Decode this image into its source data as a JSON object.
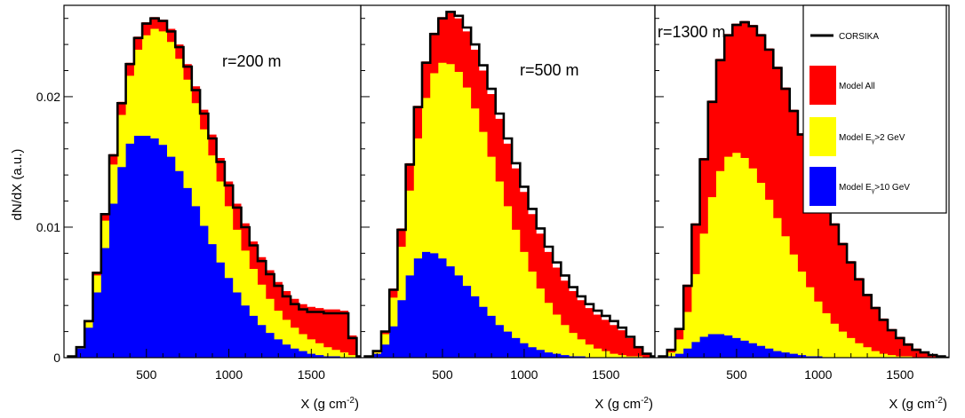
{
  "chart_data": [
    {
      "type": "area",
      "annotation": "r=200 m",
      "xlabel": "X (g cm",
      "xlabel_sup": "-2",
      "xlabel_tail": ")",
      "ylabel": "dN/dX (a.u.)",
      "xlim": [
        0,
        1800
      ],
      "ylim": [
        0,
        0.027
      ],
      "x_ticks": [
        "500",
        "1000",
        "1500"
      ],
      "y_ticks": [
        "0",
        "0.01",
        "0.02"
      ],
      "x": [
        50,
        100,
        150,
        200,
        250,
        300,
        350,
        400,
        450,
        500,
        550,
        600,
        650,
        700,
        750,
        800,
        850,
        900,
        950,
        1000,
        1050,
        1100,
        1150,
        1200,
        1250,
        1300,
        1350,
        1400,
        1450,
        1500,
        1550,
        1600,
        1650,
        1700,
        1750,
        1800
      ],
      "series": [
        {
          "name": "CORSIKA",
          "values": [
            0.0001,
            0.0008,
            0.0028,
            0.0065,
            0.011,
            0.0155,
            0.0195,
            0.0225,
            0.0245,
            0.0256,
            0.026,
            0.0258,
            0.025,
            0.0238,
            0.0223,
            0.0205,
            0.0187,
            0.0168,
            0.015,
            0.0132,
            0.0115,
            0.01,
            0.0086,
            0.0074,
            0.0064,
            0.0055,
            0.0047,
            0.0041,
            0.0037,
            0.0035,
            0.0035,
            0.0034,
            0.0034,
            0.0034,
            0.0015,
            0.0001
          ]
        },
        {
          "name": "Model All",
          "values": [
            0.0001,
            0.0008,
            0.0028,
            0.0066,
            0.011,
            0.0156,
            0.0196,
            0.0226,
            0.0246,
            0.0257,
            0.0261,
            0.0259,
            0.0252,
            0.024,
            0.0225,
            0.0208,
            0.019,
            0.0171,
            0.0153,
            0.0135,
            0.0118,
            0.0103,
            0.0089,
            0.0077,
            0.0067,
            0.0058,
            0.0051,
            0.0045,
            0.0041,
            0.0039,
            0.0038,
            0.0037,
            0.0037,
            0.0036,
            0.0017,
            0.0001
          ]
        },
        {
          "name": "Model Eγ>2 GeV",
          "values": [
            0.0001,
            0.0008,
            0.0027,
            0.0063,
            0.0105,
            0.0148,
            0.0186,
            0.0216,
            0.0236,
            0.0247,
            0.0252,
            0.025,
            0.0242,
            0.0229,
            0.0213,
            0.0195,
            0.0175,
            0.0155,
            0.0135,
            0.0116,
            0.0098,
            0.0082,
            0.0068,
            0.0056,
            0.0045,
            0.0036,
            0.0029,
            0.0023,
            0.0018,
            0.0014,
            0.0011,
            0.0008,
            0.0006,
            0.0004,
            0.0002,
            0.0001
          ]
        },
        {
          "name": "Model Eγ>10 GeV",
          "values": [
            0.0001,
            0.0007,
            0.0023,
            0.005,
            0.0084,
            0.0118,
            0.0146,
            0.0164,
            0.017,
            0.017,
            0.0168,
            0.0163,
            0.0154,
            0.0143,
            0.013,
            0.0116,
            0.0101,
            0.0087,
            0.0073,
            0.0061,
            0.005,
            0.004,
            0.0032,
            0.0025,
            0.0019,
            0.0014,
            0.001,
            0.0007,
            0.0005,
            0.0003,
            0.0002,
            0.0001,
            0.0001,
            0,
            0,
            0
          ]
        }
      ]
    },
    {
      "type": "area",
      "annotation": "r=500 m",
      "xlabel": "X (g cm",
      "xlabel_sup": "-2",
      "xlabel_tail": ")",
      "xlim": [
        0,
        1800
      ],
      "ylim": [
        0,
        0.027
      ],
      "x_ticks": [
        "500",
        "1000",
        "1500"
      ],
      "x": [
        50,
        100,
        150,
        200,
        250,
        300,
        350,
        400,
        450,
        500,
        550,
        600,
        650,
        700,
        750,
        800,
        850,
        900,
        950,
        1000,
        1050,
        1100,
        1150,
        1200,
        1250,
        1300,
        1350,
        1400,
        1450,
        1500,
        1550,
        1600,
        1650,
        1700,
        1750,
        1800
      ],
      "series": [
        {
          "name": "CORSIKA",
          "values": [
            0.0001,
            0.0005,
            0.002,
            0.0052,
            0.0098,
            0.0148,
            0.0192,
            0.0226,
            0.0248,
            0.026,
            0.0265,
            0.0262,
            0.0253,
            0.024,
            0.0224,
            0.0206,
            0.0187,
            0.0168,
            0.0149,
            0.0131,
            0.0114,
            0.0099,
            0.0085,
            0.0073,
            0.0063,
            0.0054,
            0.0047,
            0.0041,
            0.0036,
            0.0032,
            0.0028,
            0.0023,
            0.0016,
            0.0008,
            0.0003,
            0.0001
          ]
        },
        {
          "name": "Model All",
          "values": [
            0.0001,
            0.0005,
            0.002,
            0.0053,
            0.0099,
            0.0149,
            0.0193,
            0.0227,
            0.0249,
            0.0261,
            0.0264,
            0.026,
            0.025,
            0.0236,
            0.022,
            0.0202,
            0.0183,
            0.0164,
            0.0145,
            0.0127,
            0.011,
            0.0095,
            0.0081,
            0.0069,
            0.0059,
            0.0051,
            0.0044,
            0.0038,
            0.0033,
            0.0029,
            0.0025,
            0.0021,
            0.0015,
            0.0008,
            0.0003,
            0.0001
          ]
        },
        {
          "name": "Model Eγ>2 GeV",
          "values": [
            0.0001,
            0.0004,
            0.0018,
            0.0046,
            0.0085,
            0.0128,
            0.0168,
            0.0199,
            0.0218,
            0.0226,
            0.0225,
            0.0219,
            0.0207,
            0.0191,
            0.0173,
            0.0154,
            0.0135,
            0.0116,
            0.0098,
            0.0081,
            0.0066,
            0.0053,
            0.0042,
            0.0033,
            0.0025,
            0.0019,
            0.0014,
            0.001,
            0.0007,
            0.0005,
            0.0003,
            0.0002,
            0.0001,
            0.0001,
            0,
            0
          ]
        },
        {
          "name": "Model Eγ>10 GeV",
          "values": [
            0.0001,
            0.0003,
            0.001,
            0.0024,
            0.0044,
            0.0063,
            0.0076,
            0.0081,
            0.008,
            0.0076,
            0.007,
            0.0063,
            0.0055,
            0.0047,
            0.0039,
            0.0032,
            0.0025,
            0.002,
            0.0015,
            0.0011,
            0.0008,
            0.0006,
            0.0004,
            0.0003,
            0.0002,
            0.0001,
            0.0001,
            0,
            0,
            0,
            0,
            0,
            0,
            0,
            0,
            0
          ]
        }
      ]
    },
    {
      "type": "area",
      "annotation": "r=1300 m",
      "xlabel": "X (g cm",
      "xlabel_sup": "-2",
      "xlabel_tail": ")",
      "xlim": [
        0,
        1800
      ],
      "ylim": [
        0,
        0.027
      ],
      "x_ticks": [
        "500",
        "1000",
        "1500"
      ],
      "x": [
        50,
        100,
        150,
        200,
        250,
        300,
        350,
        400,
        450,
        500,
        550,
        600,
        650,
        700,
        750,
        800,
        850,
        900,
        950,
        1000,
        1050,
        1100,
        1150,
        1200,
        1250,
        1300,
        1350,
        1400,
        1450,
        1500,
        1550,
        1600,
        1650,
        1700,
        1750,
        1800
      ],
      "series": [
        {
          "name": "CORSIKA",
          "values": [
            0.0001,
            0.0006,
            0.0022,
            0.0055,
            0.0102,
            0.0152,
            0.0196,
            0.0228,
            0.0247,
            0.0255,
            0.0257,
            0.0254,
            0.0247,
            0.0236,
            0.0222,
            0.0206,
            0.0189,
            0.0171,
            0.0153,
            0.0135,
            0.0118,
            0.0102,
            0.0087,
            0.0073,
            0.006,
            0.0048,
            0.0038,
            0.0029,
            0.0021,
            0.0015,
            0.001,
            0.0006,
            0.0004,
            0.0002,
            0.0001,
            0
          ]
        },
        {
          "name": "Model All",
          "values": [
            0.0001,
            0.0006,
            0.0022,
            0.0056,
            0.0103,
            0.0153,
            0.0197,
            0.0229,
            0.0248,
            0.0256,
            0.0258,
            0.0255,
            0.0248,
            0.0237,
            0.0223,
            0.0207,
            0.019,
            0.0172,
            0.0154,
            0.0136,
            0.0119,
            0.0103,
            0.0088,
            0.0074,
            0.0061,
            0.0049,
            0.0039,
            0.003,
            0.0022,
            0.0016,
            0.0011,
            0.0007,
            0.0004,
            0.0002,
            0.0001,
            0
          ]
        },
        {
          "name": "Model Eγ>2 GeV",
          "values": [
            0.0001,
            0.0004,
            0.0014,
            0.0035,
            0.0064,
            0.0095,
            0.0123,
            0.0143,
            0.0154,
            0.0157,
            0.0153,
            0.0145,
            0.0134,
            0.0121,
            0.0107,
            0.0093,
            0.0079,
            0.0066,
            0.0054,
            0.0043,
            0.0034,
            0.0026,
            0.002,
            0.0015,
            0.0011,
            0.0008,
            0.0005,
            0.0003,
            0.0002,
            0.0001,
            0.0001,
            0,
            0,
            0,
            0,
            0
          ]
        },
        {
          "name": "Model Eγ>10 GeV",
          "values": [
            0,
            0.0001,
            0.0003,
            0.0007,
            0.0012,
            0.0016,
            0.0018,
            0.0018,
            0.0017,
            0.0015,
            0.0013,
            0.0011,
            0.0009,
            0.0007,
            0.0005,
            0.0004,
            0.0003,
            0.0002,
            0.0001,
            0.0001,
            0,
            0,
            0,
            0,
            0,
            0,
            0,
            0,
            0,
            0,
            0,
            0,
            0,
            0,
            0,
            0
          ]
        }
      ]
    }
  ],
  "legend": {
    "placement": "top-right",
    "items": [
      {
        "pre": "CORSIKA",
        "sub": "",
        "post": "",
        "color": "#000000",
        "kind": "line"
      },
      {
        "pre": "Model All",
        "sub": "",
        "post": "",
        "color": "#ff0000",
        "kind": "fill"
      },
      {
        "pre": "Model E",
        "sub": "γ",
        "post": ">2 GeV",
        "color": "#ffff00",
        "kind": "fill"
      },
      {
        "pre": "Model E",
        "sub": "γ",
        "post": ">10 GeV",
        "color": "#0000ff",
        "kind": "fill"
      }
    ]
  },
  "colors": {
    "corsika": "#000000",
    "model_all": "#ff0000",
    "model_2gev": "#ffff00",
    "model_10gev": "#0000ff"
  }
}
